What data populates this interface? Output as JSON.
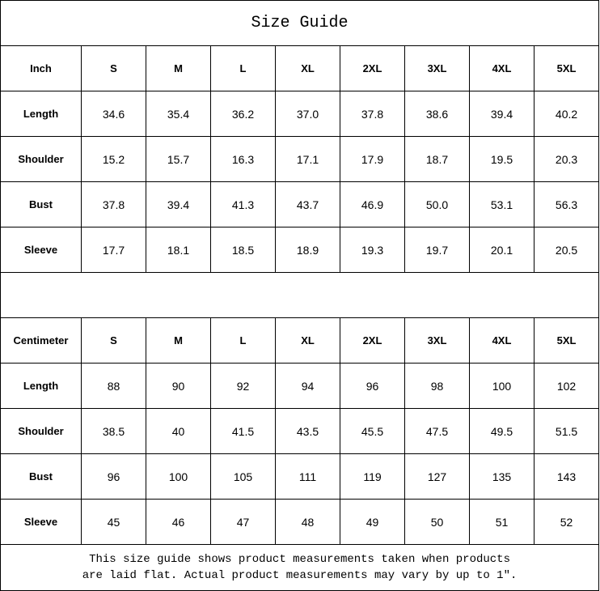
{
  "title": "Size Guide",
  "sizes": [
    "S",
    "M",
    "L",
    "XL",
    "2XL",
    "3XL",
    "4XL",
    "5XL"
  ],
  "tables": [
    {
      "unit": "Inch",
      "rows": [
        {
          "label": "Length",
          "values": [
            "34.6",
            "35.4",
            "36.2",
            "37.0",
            "37.8",
            "38.6",
            "39.4",
            "40.2"
          ]
        },
        {
          "label": "Shoulder",
          "values": [
            "15.2",
            "15.7",
            "16.3",
            "17.1",
            "17.9",
            "18.7",
            "19.5",
            "20.3"
          ]
        },
        {
          "label": "Bust",
          "values": [
            "37.8",
            "39.4",
            "41.3",
            "43.7",
            "46.9",
            "50.0",
            "53.1",
            "56.3"
          ]
        },
        {
          "label": "Sleeve",
          "values": [
            "17.7",
            "18.1",
            "18.5",
            "18.9",
            "19.3",
            "19.7",
            "20.1",
            "20.5"
          ]
        }
      ]
    },
    {
      "unit": "Centimeter",
      "rows": [
        {
          "label": "Length",
          "values": [
            "88",
            "90",
            "92",
            "94",
            "96",
            "98",
            "100",
            "102"
          ]
        },
        {
          "label": "Shoulder",
          "values": [
            "38.5",
            "40",
            "41.5",
            "43.5",
            "45.5",
            "47.5",
            "49.5",
            "51.5"
          ]
        },
        {
          "label": "Bust",
          "values": [
            "96",
            "100",
            "105",
            "111",
            "119",
            "127",
            "135",
            "143"
          ]
        },
        {
          "label": "Sleeve",
          "values": [
            "45",
            "46",
            "47",
            "48",
            "49",
            "50",
            "51",
            "52"
          ]
        }
      ]
    }
  ],
  "note_line1": "This size guide shows product measurements taken when products",
  "note_line2": "are laid flat. Actual product measurements may vary by up to 1″."
}
